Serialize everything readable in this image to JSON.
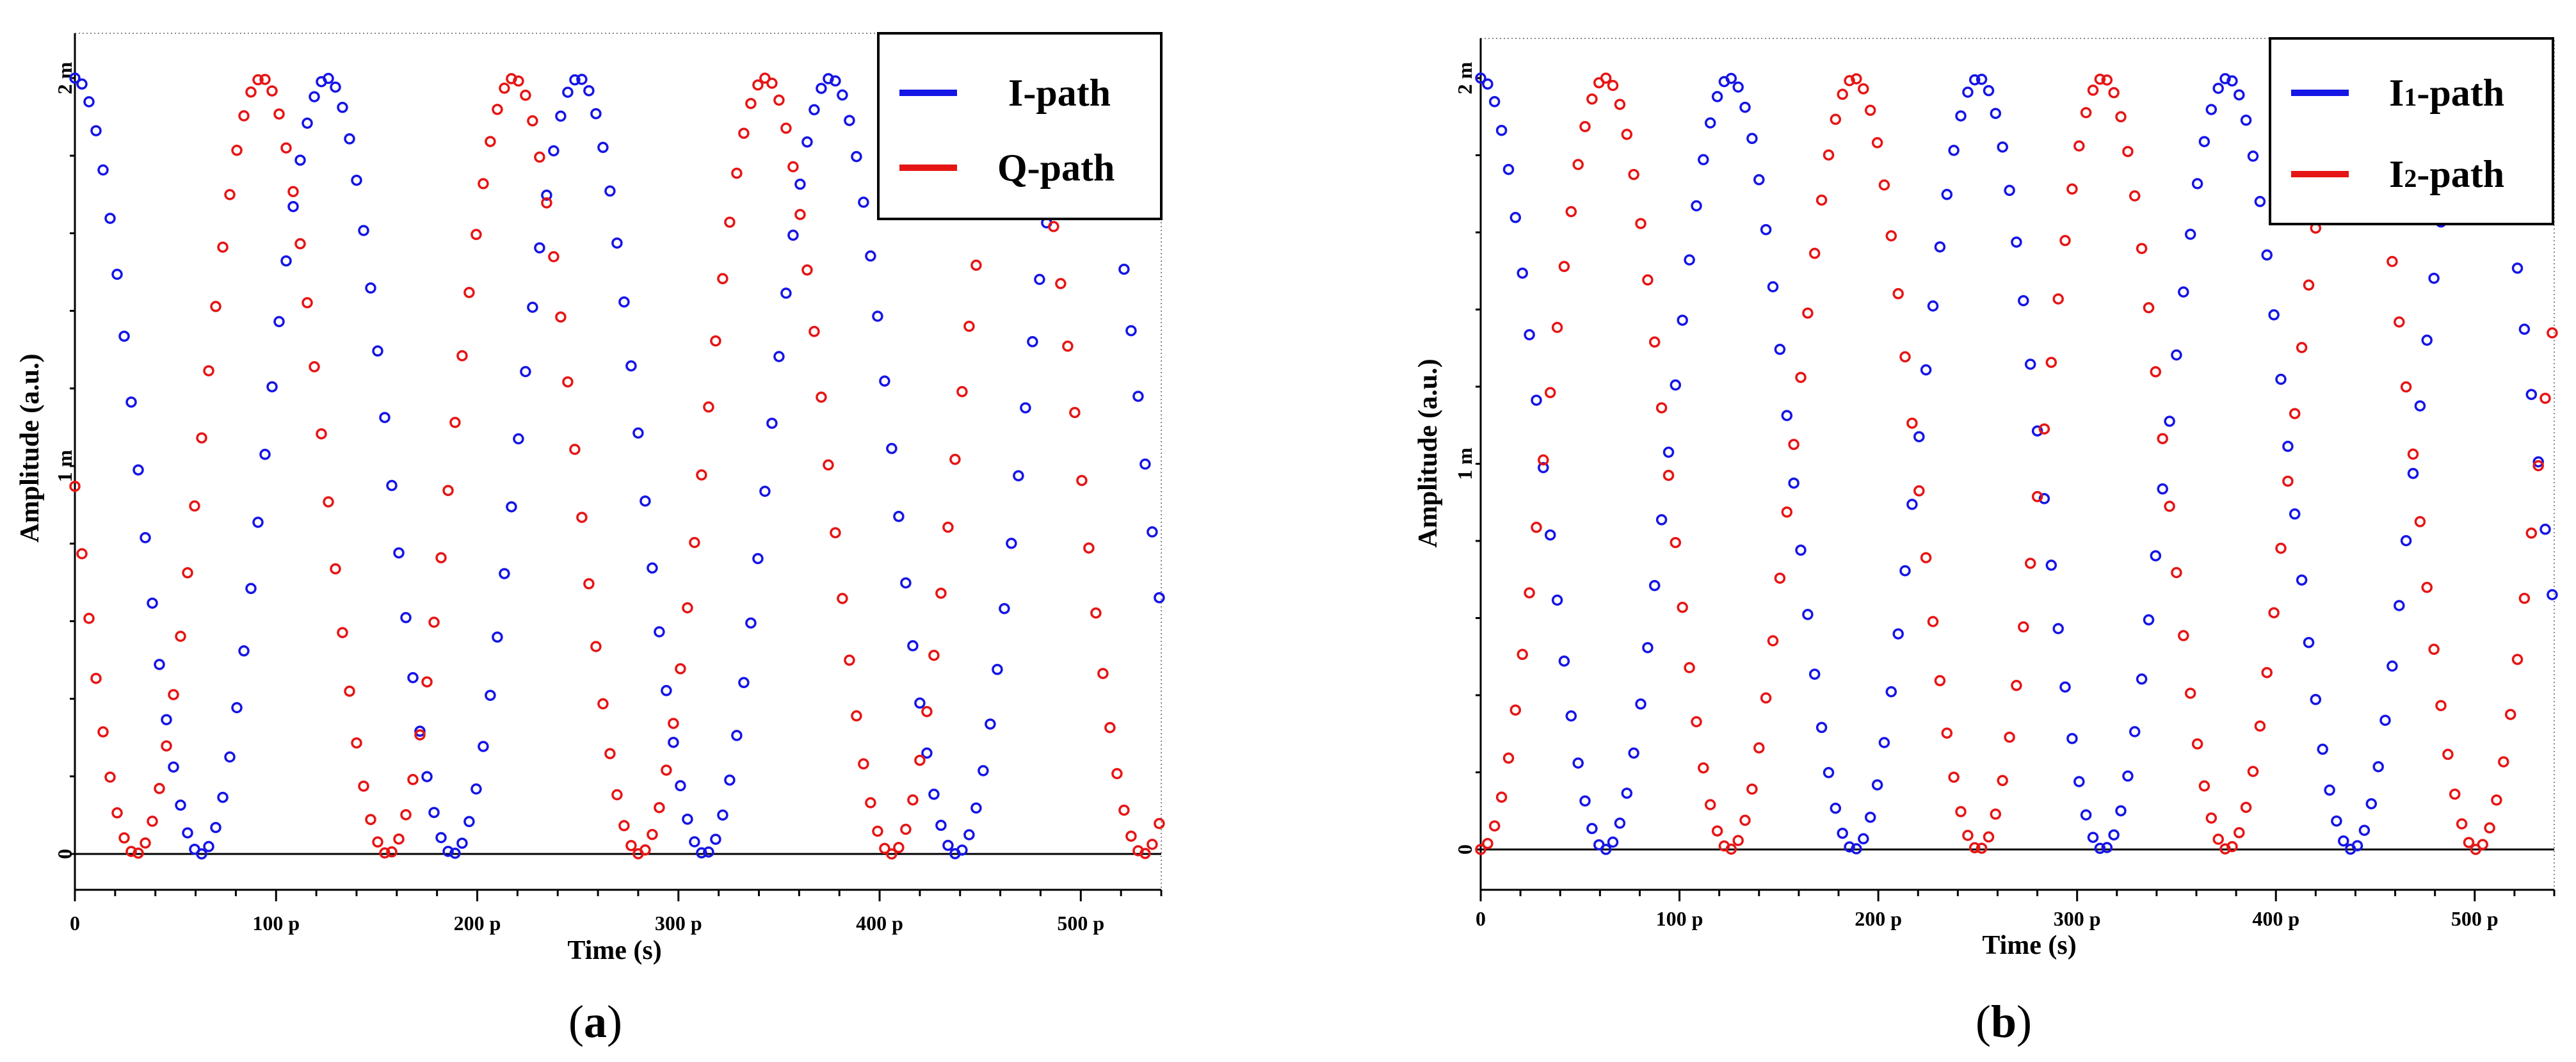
{
  "chart_data": [
    {
      "type": "scatter",
      "panel_label": "a",
      "xlabel": "Time (s)",
      "ylabel": "Amplitude (a.u.)",
      "xlim": [
        0,
        540
      ],
      "ylim": [
        -0.1,
        2.1
      ],
      "x_unit": "p",
      "y_unit": "m",
      "x_ticks": [
        0,
        100,
        200,
        300,
        400,
        500
      ],
      "x_tick_labels": [
        "0",
        "100 p",
        "200 p",
        "300 p",
        "400 p",
        "500 p"
      ],
      "y_ticks": [
        0,
        1,
        2
      ],
      "y_tick_labels": [
        "0",
        "1 m",
        "2 m"
      ],
      "legend": {
        "position": "top-right",
        "entries": [
          "I-path",
          "Q-path"
        ]
      },
      "x_step": 3.5,
      "series": [
        {
          "name": "I-path",
          "color": "#1515e6",
          "formula": "1 + cos(2*pi*x/125.2)",
          "amplitude": 1,
          "offset": 1,
          "period": 125.2,
          "phase_deg": 0
        },
        {
          "name": "Q-path",
          "color": "#e61515",
          "formula": "1 + cos(2*pi*(x-93)/125.2)",
          "amplitude": 1,
          "offset": 1,
          "period": 125.2,
          "phase_deg": -267
        }
      ]
    },
    {
      "type": "scatter",
      "panel_label": "b",
      "xlabel": "Time (s)",
      "ylabel": "Amplitude (a.u.)",
      "xlim": [
        0,
        540
      ],
      "ylim": [
        -0.1,
        2.1
      ],
      "x_unit": "p",
      "y_unit": "m",
      "x_ticks": [
        0,
        100,
        200,
        300,
        400,
        500
      ],
      "x_tick_labels": [
        "0",
        "100 p",
        "200 p",
        "300 p",
        "400 p",
        "500 p"
      ],
      "y_ticks": [
        0,
        1,
        2
      ],
      "y_tick_labels": [
        "0",
        "1 m",
        "2 m"
      ],
      "legend": {
        "position": "top-right",
        "entries": [
          "I1-path",
          "I2-path"
        ]
      },
      "x_step": 3.5,
      "series": [
        {
          "name": "I1-path",
          "color": "#1515e6",
          "formula": "1 + cos(2*pi*x/125.2)",
          "amplitude": 1,
          "offset": 1,
          "period": 125.2,
          "phase_deg": 0
        },
        {
          "name": "I2-path",
          "color": "#e61515",
          "formula": "1 - cos(2*pi*x/125.2)",
          "amplitude": 1,
          "offset": 1,
          "period": 125.2,
          "phase_deg": 180
        }
      ]
    }
  ],
  "legend_a": {
    "entry1_label": "I-path",
    "entry2_label": "Q-path"
  },
  "legend_b": {
    "entry1_main": "I",
    "entry1_sub": "1",
    "entry1_suffix": "-path",
    "entry2_main": "I",
    "entry2_sub": "2",
    "entry2_suffix": "-path"
  },
  "captions": {
    "a": "a",
    "b": "b"
  }
}
